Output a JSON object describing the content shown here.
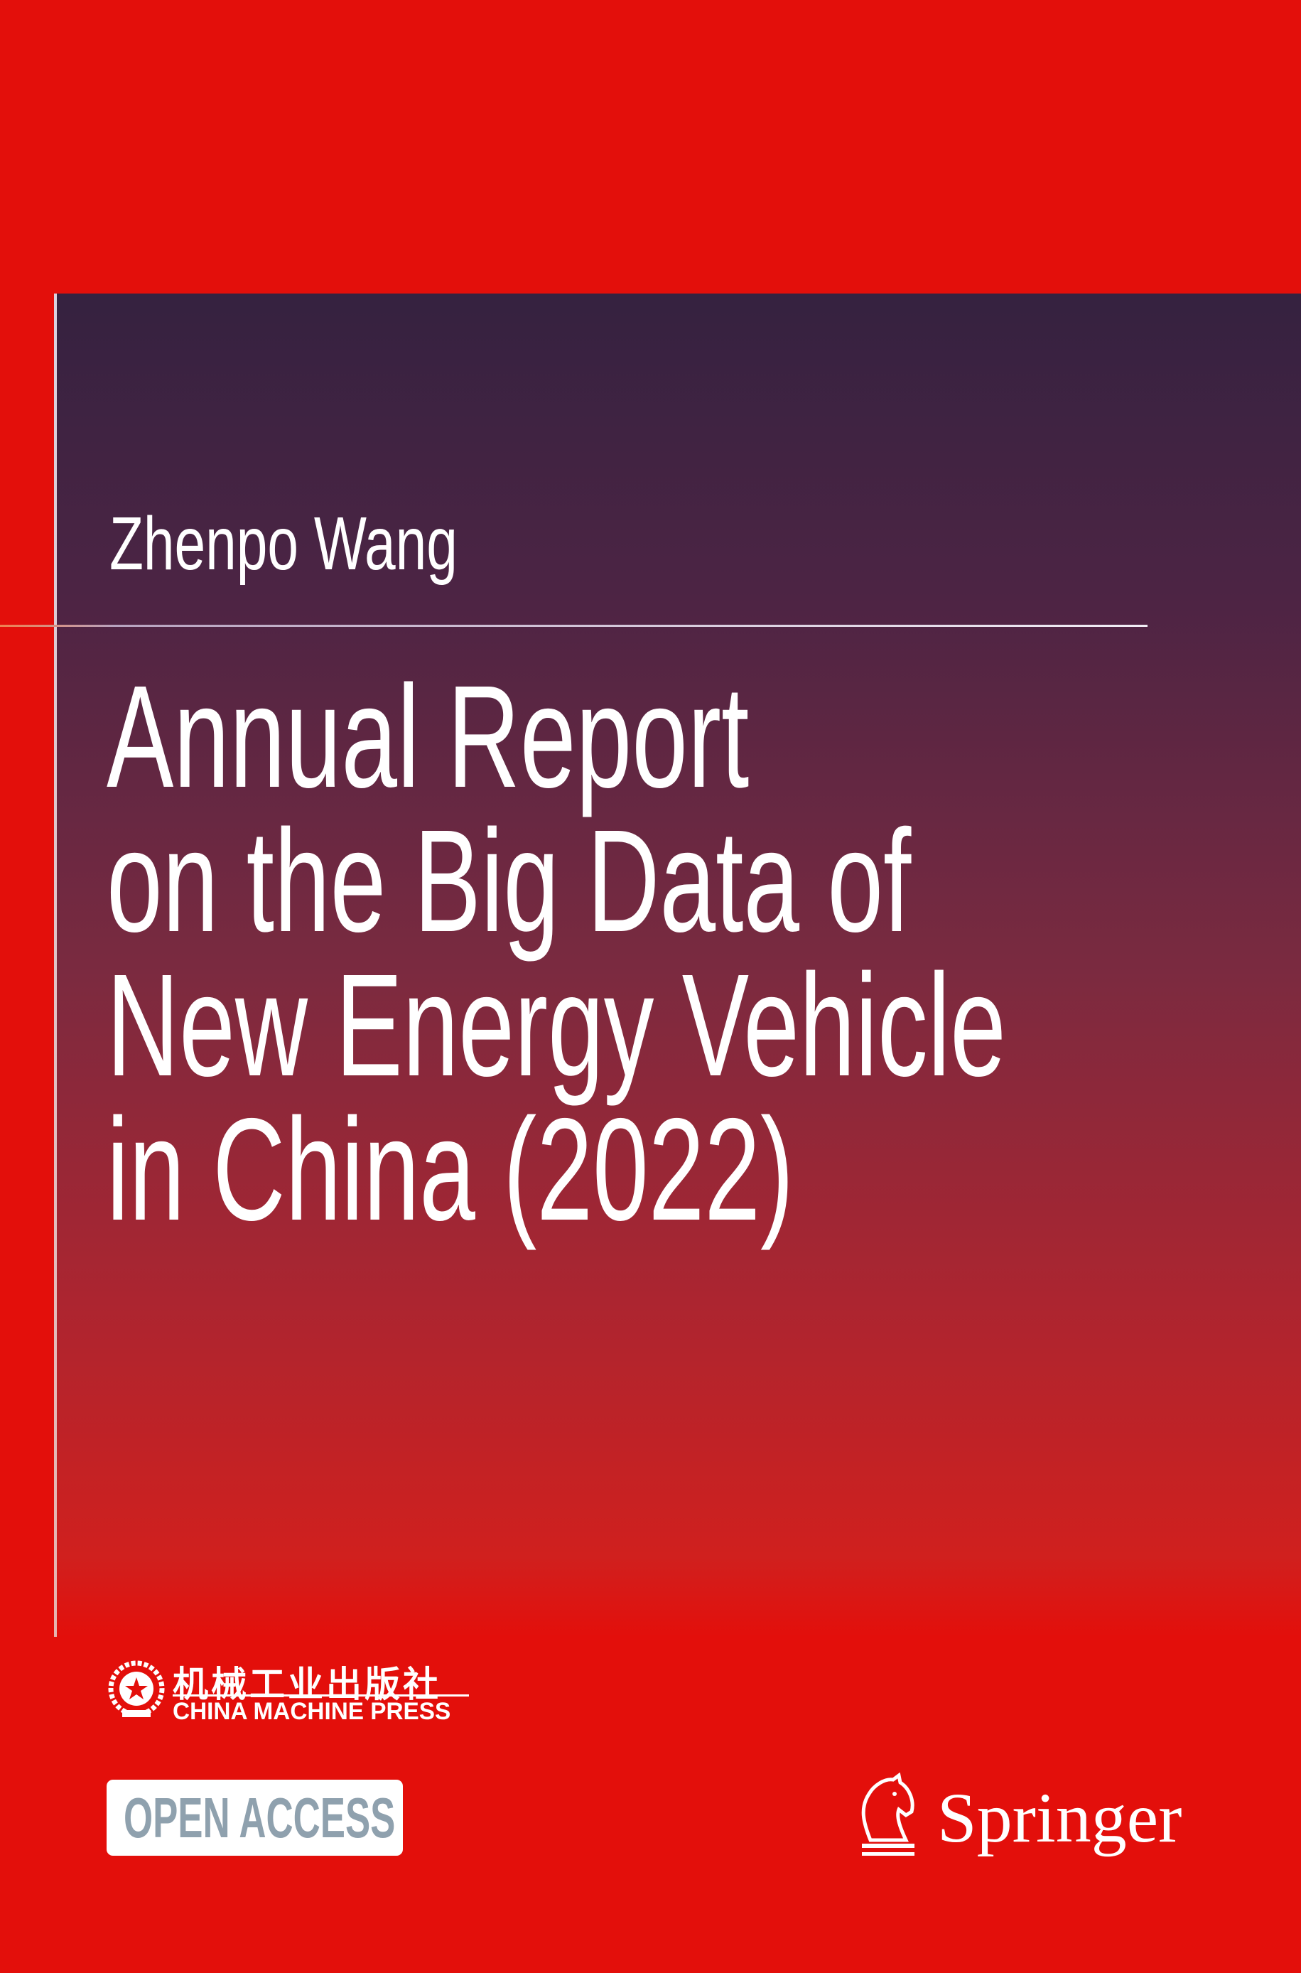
{
  "author": "Zhenpo Wang",
  "title": [
    "Annual Report",
    "on the Big Data of",
    "New Energy Vehicle",
    "in China (2022)"
  ],
  "publisher": {
    "name_zh": "机械工业出版社",
    "name_en": "CHINA MACHINE PRESS"
  },
  "badge": "OPEN ACCESS",
  "imprint": "Springer"
}
